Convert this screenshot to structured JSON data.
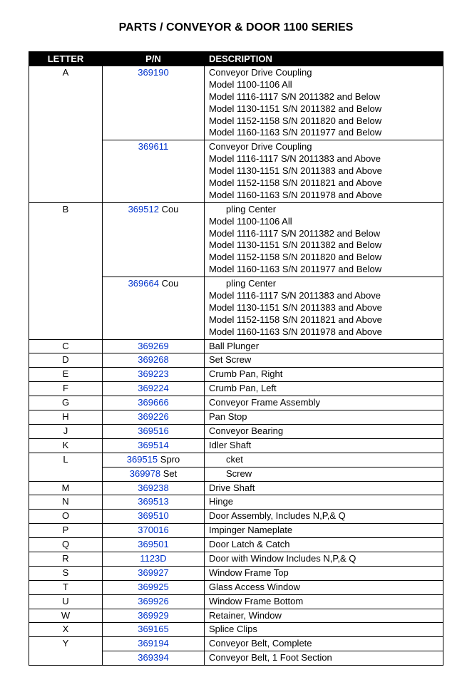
{
  "title": "PARTS / CONVEYOR & DOOR 1100 SERIES",
  "headers": {
    "letter": "LETTER",
    "pn": "P/N",
    "description": "DESCRIPTION"
  },
  "rows": [
    {
      "letter": "A",
      "letter_rowspan": 2,
      "pn": "369190",
      "pn_suffix": "",
      "desc_lines": [
        "Conveyor Drive Coupling",
        "Model 1100-1106 All",
        "Model 1116-1117 S/N 2011382 and Below",
        "Model 1130-1151 S/N 2011382 and Below",
        "Model 1152-1158 S/N 2011820 and Below",
        "Model 1160-1163 S/N 2011977 and Below"
      ]
    },
    {
      "letter": "",
      "hide_letter": true,
      "pn": "369611",
      "pn_suffix": "",
      "desc_lines": [
        "Conveyor Drive Coupling",
        "Model 1116-1117 S/N 2011383 and Above",
        "Model 1130-1151 S/N 2011383 and Above",
        "Model 1152-1158 S/N 2011821 and Above",
        "Model 1160-1163 S/N 2011978 and Above"
      ]
    },
    {
      "letter": "B",
      "letter_rowspan": 2,
      "pn": "369512",
      "pn_suffix": " Cou",
      "desc_first_indent": true,
      "desc_lines": [
        "pling Center",
        "Model 1100-1106 All",
        "Model 1116-1117 S/N 2011382 and Below",
        "Model 1130-1151 S/N 2011382 and Below",
        "Model 1152-1158 S/N 2011820 and Below",
        "Model 1160-1163 S/N 2011977 and Below"
      ]
    },
    {
      "letter": "",
      "hide_letter": true,
      "pn": "369664",
      "pn_suffix": " Cou",
      "desc_first_indent": true,
      "desc_lines": [
        "pling Center",
        "Model 1116-1117 S/N 2011383 and Above",
        "Model 1130-1151 S/N 2011383 and Above",
        "Model 1152-1158 S/N 2011821 and Above",
        "Model 1160-1163 S/N 2011978 and Above"
      ]
    },
    {
      "letter": "C",
      "pn": "369269",
      "pn_suffix": "",
      "desc_lines": [
        "Ball Plunger"
      ]
    },
    {
      "letter": "D",
      "pn": "369268",
      "pn_suffix": "",
      "desc_lines": [
        "Set Screw"
      ]
    },
    {
      "letter": "E",
      "pn": "369223",
      "pn_suffix": "",
      "desc_lines": [
        "Crumb Pan, Right"
      ]
    },
    {
      "letter": "F",
      "pn": "369224",
      "pn_suffix": "",
      "desc_lines": [
        "Crumb Pan, Left"
      ]
    },
    {
      "letter": "G",
      "pn": "369666",
      "pn_suffix": "",
      "desc_lines": [
        "Conveyor Frame Assembly"
      ]
    },
    {
      "letter": "H",
      "pn": "369226",
      "pn_suffix": "",
      "desc_lines": [
        "Pan Stop"
      ]
    },
    {
      "letter": "J",
      "pn": "369516",
      "pn_suffix": "",
      "desc_lines": [
        "Conveyor Bearing"
      ]
    },
    {
      "letter": "K",
      "pn": "369514",
      "pn_suffix": "",
      "desc_lines": [
        "Idler Shaft"
      ]
    },
    {
      "letter": "L",
      "letter_rowspan": 2,
      "pn": "369515",
      "pn_suffix": " Spro",
      "desc_first_indent": true,
      "desc_lines": [
        "cket"
      ]
    },
    {
      "letter": "",
      "hide_letter": true,
      "pn": "369978",
      "pn_suffix": " Set",
      "desc_first_indent": true,
      "desc_lines": [
        "Screw"
      ]
    },
    {
      "letter": "M",
      "pn": "369238",
      "pn_suffix": "",
      "desc_lines": [
        "Drive Shaft"
      ]
    },
    {
      "letter": "N",
      "pn": "369513",
      "pn_suffix": "",
      "desc_lines": [
        "Hinge"
      ]
    },
    {
      "letter": "O",
      "pn": "369510",
      "pn_suffix": "",
      "desc_lines": [
        "Door Assembly, Includes N,P,& Q"
      ]
    },
    {
      "letter": "P",
      "pn": "370016",
      "pn_suffix": "",
      "desc_lines": [
        "Impinger Nameplate"
      ]
    },
    {
      "letter": "Q",
      "pn": "369501",
      "pn_suffix": "",
      "desc_lines": [
        "Door Latch & Catch"
      ]
    },
    {
      "letter": "R",
      "pn": "1123D",
      "pn_suffix": "",
      "desc_lines": [
        "Door with Window Includes N,P,& Q"
      ]
    },
    {
      "letter": "S",
      "pn": "369927",
      "pn_suffix": "",
      "desc_lines": [
        "Window Frame Top"
      ]
    },
    {
      "letter": "T",
      "pn": "369925",
      "pn_suffix": "",
      "desc_lines": [
        "Glass Access Window"
      ]
    },
    {
      "letter": "U",
      "pn": "369926",
      "pn_suffix": "",
      "desc_lines": [
        "Window Frame Bottom"
      ]
    },
    {
      "letter": "W",
      "pn": "369929",
      "pn_suffix": "",
      "desc_lines": [
        "Retainer, Window"
      ]
    },
    {
      "letter": "X",
      "pn": "369165",
      "pn_suffix": "",
      "desc_lines": [
        "Splice Clips"
      ]
    },
    {
      "letter": "Y",
      "letter_rowspan": 2,
      "pn": "369194",
      "pn_suffix": "",
      "desc_lines": [
        "Conveyor Belt, Complete"
      ]
    },
    {
      "letter": "",
      "hide_letter": true,
      "pn": "369394",
      "pn_suffix": "",
      "desc_lines": [
        "Conveyor Belt, 1 Foot Section"
      ]
    }
  ]
}
